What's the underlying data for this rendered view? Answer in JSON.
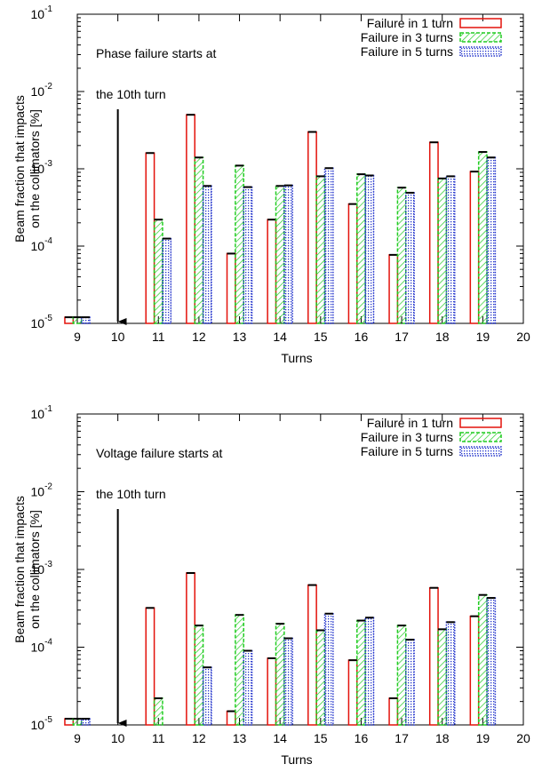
{
  "chart_data": [
    {
      "type": "bar",
      "xlabel": "Turns",
      "ylabel_lines": [
        "Beam fraction that impacts",
        "on the collimators [%]"
      ],
      "annotation_lines": [
        "Phase failure starts at",
        "the 10th turn"
      ],
      "arrow_turn": 10,
      "xlim": [
        9,
        20
      ],
      "x_ticks": [
        "9",
        "10",
        "11",
        "12",
        "13",
        "14",
        "15",
        "16",
        "17",
        "18",
        "19",
        "20"
      ],
      "yscale": "log",
      "ylim": [
        1e-05,
        0.1
      ],
      "grid": false,
      "legend_position": "top-right",
      "x": [
        9,
        11,
        12,
        13,
        14,
        15,
        16,
        17,
        18,
        19
      ],
      "series": [
        {
          "name": "Failure in 1 turn",
          "color": "#e3120b",
          "pattern": "solid",
          "values": [
            1.2e-05,
            0.0016,
            0.005,
            8e-05,
            0.00022,
            0.003,
            0.00035,
            7.7e-05,
            0.0022,
            0.00092
          ]
        },
        {
          "name": "Failure in 3 turns",
          "color": "#22cc22",
          "pattern": "hatch",
          "values": [
            1.2e-05,
            0.00022,
            0.0014,
            0.0011,
            0.0006,
            0.0008,
            0.00085,
            0.00057,
            0.00075,
            0.00165
          ]
        },
        {
          "name": "Failure in 5 turns",
          "color": "#2233cc",
          "pattern": "dots",
          "values": [
            1.2e-05,
            0.000125,
            0.0006,
            0.00058,
            0.00061,
            0.00102,
            0.00082,
            0.00049,
            0.0008,
            0.0014
          ]
        }
      ]
    },
    {
      "type": "bar",
      "xlabel": "Turns",
      "ylabel_lines": [
        "Beam fraction that impacts",
        "on the collimators [%]"
      ],
      "annotation_lines": [
        "Voltage failure starts at",
        "the 10th turn"
      ],
      "arrow_turn": 10,
      "xlim": [
        9,
        20
      ],
      "x_ticks": [
        "9",
        "10",
        "11",
        "12",
        "13",
        "14",
        "15",
        "16",
        "17",
        "18",
        "19",
        "20"
      ],
      "yscale": "log",
      "ylim": [
        1e-05,
        0.1
      ],
      "grid": false,
      "legend_position": "top-right",
      "x": [
        9,
        11,
        12,
        13,
        14,
        15,
        16,
        17,
        18,
        19
      ],
      "series": [
        {
          "name": "Failure in 1 turn",
          "color": "#e3120b",
          "pattern": "solid",
          "values": [
            1.2e-05,
            0.00032,
            0.0009,
            1.5e-05,
            7.2e-05,
            0.00063,
            6.8e-05,
            2.2e-05,
            0.00058,
            0.00025
          ]
        },
        {
          "name": "Failure in 3 turns",
          "color": "#22cc22",
          "pattern": "hatch",
          "values": [
            1.2e-05,
            2.2e-05,
            0.00019,
            0.00026,
            0.0002,
            0.000165,
            0.00022,
            0.00019,
            0.00017,
            0.00047
          ]
        },
        {
          "name": "Failure in 5 turns",
          "color": "#2233cc",
          "pattern": "dots",
          "values": [
            1.2e-05,
            null,
            5.5e-05,
            9e-05,
            0.00013,
            0.00027,
            0.00024,
            0.000125,
            0.00021,
            0.00043
          ]
        }
      ]
    }
  ]
}
